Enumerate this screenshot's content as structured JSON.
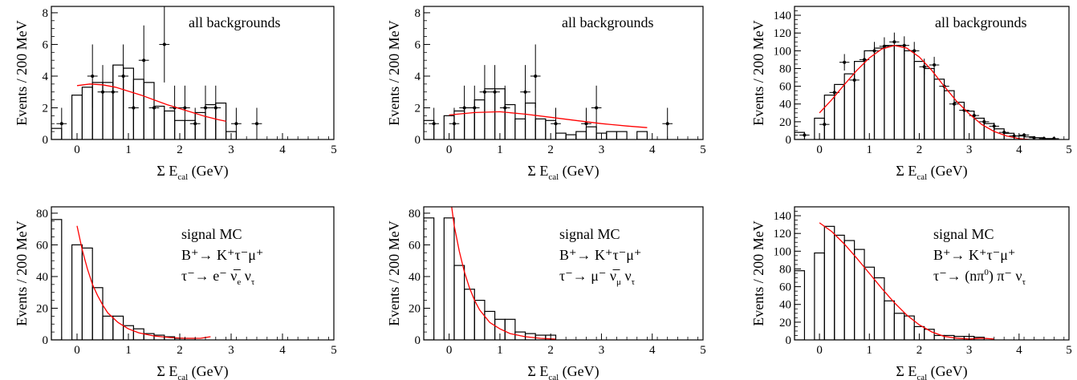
{
  "figure": {
    "colors": {
      "axes": "#000000",
      "histogram": "#000000",
      "data_points": "#000000",
      "fit": "#ff0000",
      "background": "#ffffff"
    }
  },
  "chart_data": [
    {
      "type": "histogram",
      "panel": "top-left",
      "xlabel": {
        "main": "Σ E",
        "sub": "cal",
        "unit": "(GeV)"
      },
      "ylabel": "Events / 200 MeV",
      "xlim": [
        -0.5,
        5
      ],
      "ylim": [
        0,
        8.4
      ],
      "xticks": [
        "0",
        "1",
        "2",
        "3",
        "4",
        "5"
      ],
      "yticks": [
        "0",
        "2",
        "4",
        "6",
        "8"
      ],
      "annotations": [
        {
          "text": "all backgrounds",
          "sub": "",
          "sup": ""
        }
      ],
      "bin_width": 0.2,
      "histogram": {
        "x": [
          -0.4,
          -0.2,
          0.0,
          0.2,
          0.4,
          0.6,
          0.8,
          1.0,
          1.2,
          1.4,
          1.6,
          1.8,
          2.0,
          2.2,
          2.4,
          2.6,
          2.8,
          3.0,
          3.2
        ],
        "values": [
          0.7,
          0,
          2.8,
          3.3,
          3.6,
          3.6,
          4.7,
          4.5,
          3.8,
          3.6,
          2.1,
          1.8,
          1.2,
          1.2,
          1.7,
          2.2,
          2.3,
          0.5,
          0
        ]
      },
      "data_points": {
        "x": [
          -0.3,
          0.3,
          0.5,
          0.7,
          0.9,
          1.1,
          1.3,
          1.5,
          1.7,
          1.9,
          2.1,
          2.3,
          2.5,
          2.7,
          3.1,
          3.5
        ],
        "y": [
          1,
          4,
          3,
          3,
          4,
          2,
          5,
          2,
          6,
          2,
          2,
          1,
          2,
          2,
          1,
          1
        ],
        "yerr": [
          1,
          2,
          1.7,
          1.7,
          2,
          1.4,
          2.2,
          1.4,
          2.4,
          1.4,
          1.4,
          1,
          1.4,
          1.4,
          1,
          1
        ]
      },
      "fit": {
        "x": [
          0,
          0.25,
          0.5,
          0.75,
          1.0,
          1.25,
          1.5,
          1.75,
          2.0,
          2.25,
          2.5,
          2.75,
          2.9
        ],
        "y": [
          3.4,
          3.5,
          3.45,
          3.3,
          3.05,
          2.8,
          2.5,
          2.2,
          1.95,
          1.7,
          1.45,
          1.25,
          1.15
        ]
      }
    },
    {
      "type": "histogram",
      "panel": "top-middle",
      "xlabel": {
        "main": "Σ E",
        "sub": "cal",
        "unit": "(GeV)"
      },
      "ylabel": "Events / 200 MeV",
      "xlim": [
        -0.5,
        5
      ],
      "ylim": [
        0,
        8.4
      ],
      "xticks": [
        "0",
        "1",
        "2",
        "3",
        "4",
        "5"
      ],
      "yticks": [
        "0",
        "2",
        "4",
        "6",
        "8"
      ],
      "annotations": [
        {
          "text": "all backgrounds",
          "sub": "",
          "sup": ""
        }
      ],
      "bin_width": 0.2,
      "histogram": {
        "x": [
          -0.4,
          -0.2,
          0.0,
          0.2,
          0.4,
          0.6,
          0.8,
          1.0,
          1.2,
          1.4,
          1.6,
          1.8,
          2.0,
          2.2,
          2.4,
          2.6,
          2.8,
          3.0,
          3.2,
          3.4,
          3.6,
          3.8,
          4.0
        ],
        "values": [
          1.2,
          0,
          1.5,
          1.8,
          2.0,
          2.5,
          3.2,
          3.2,
          2.2,
          1.3,
          2.3,
          1.3,
          1.2,
          0.4,
          0.3,
          0.5,
          0.8,
          0.4,
          0.5,
          0.5,
          0,
          0.5,
          0
        ]
      },
      "data_points": {
        "x": [
          -0.3,
          0.1,
          0.3,
          0.5,
          0.7,
          0.9,
          1.1,
          1.5,
          1.7,
          2.1,
          2.7,
          2.9,
          4.3
        ],
        "y": [
          1,
          1,
          2,
          2,
          3,
          3,
          2,
          3,
          4,
          1,
          1,
          2,
          1
        ],
        "yerr": [
          1,
          1,
          1.4,
          1.4,
          1.7,
          1.7,
          1.4,
          1.7,
          2,
          1,
          1,
          1.4,
          1
        ]
      },
      "fit": {
        "x": [
          0,
          0.5,
          1.0,
          1.5,
          2.0,
          2.5,
          3.0,
          3.5,
          3.9
        ],
        "y": [
          1.55,
          1.7,
          1.75,
          1.6,
          1.4,
          1.2,
          1.0,
          0.85,
          0.75
        ]
      }
    },
    {
      "type": "histogram",
      "panel": "top-right",
      "xlabel": {
        "main": "Σ E",
        "sub": "cal",
        "unit": "(GeV)"
      },
      "ylabel": "Events / 200 MeV",
      "xlim": [
        -0.5,
        5
      ],
      "ylim": [
        0,
        150
      ],
      "xticks": [
        "0",
        "1",
        "2",
        "3",
        "4",
        "5"
      ],
      "yticks": [
        "0",
        "20",
        "40",
        "60",
        "80",
        "100",
        "120",
        "140"
      ],
      "annotations": [
        {
          "text": "all backgrounds",
          "sub": "",
          "sup": ""
        }
      ],
      "bin_width": 0.2,
      "histogram": {
        "x": [
          -0.4,
          -0.2,
          0.0,
          0.2,
          0.4,
          0.6,
          0.8,
          1.0,
          1.2,
          1.4,
          1.6,
          1.8,
          2.0,
          2.2,
          2.4,
          2.6,
          2.8,
          3.0,
          3.2,
          3.4,
          3.6,
          3.8,
          4.0,
          4.2,
          4.4,
          4.6,
          4.8
        ],
        "values": [
          8,
          0,
          24,
          50,
          62,
          74,
          88,
          100,
          103,
          106,
          106,
          100,
          88,
          80,
          68,
          55,
          42,
          32,
          24,
          18,
          12,
          7,
          4,
          3,
          2,
          1,
          0
        ]
      },
      "data_points": {
        "x": [
          -0.3,
          0.1,
          0.3,
          0.5,
          0.7,
          0.9,
          1.1,
          1.3,
          1.5,
          1.7,
          1.9,
          2.1,
          2.3,
          2.5,
          2.7,
          2.9,
          3.1,
          3.3,
          3.5,
          3.7,
          3.9,
          4.1,
          4.3,
          4.5,
          4.7
        ],
        "y": [
          5,
          17,
          53,
          87,
          67,
          90,
          100,
          105,
          110,
          106,
          100,
          82,
          84,
          60,
          40,
          33,
          27,
          20,
          15,
          8,
          4,
          5,
          2,
          1,
          1
        ],
        "yerr": [
          2.2,
          4.1,
          7.3,
          9.3,
          8.2,
          9.5,
          10,
          10.2,
          10.5,
          10.3,
          10,
          9.1,
          9.2,
          7.7,
          6.3,
          5.7,
          5.2,
          4.5,
          3.9,
          2.8,
          2,
          2.2,
          1.4,
          1,
          1
        ]
      },
      "fit": {
        "x": [
          0,
          0.25,
          0.5,
          0.75,
          1.0,
          1.25,
          1.5,
          1.75,
          2.0,
          2.25,
          2.5,
          2.75,
          3.0,
          3.25,
          3.5,
          3.75,
          4.0,
          4.2
        ],
        "y": [
          30,
          45,
          62,
          78,
          92,
          102,
          106,
          103,
          93,
          78,
          60,
          43,
          29,
          17,
          9,
          4,
          1,
          0
        ]
      }
    },
    {
      "type": "histogram",
      "panel": "bottom-left",
      "xlabel": {
        "main": "Σ E",
        "sub": "cal",
        "unit": "(GeV)"
      },
      "ylabel": "Events / 200 MeV",
      "xlim": [
        -0.5,
        5
      ],
      "ylim": [
        0,
        84
      ],
      "xticks": [
        "0",
        "1",
        "2",
        "3",
        "4",
        "5"
      ],
      "yticks": [
        "0",
        "20",
        "40",
        "60",
        "80"
      ],
      "annotations": [
        {
          "text": "signal MC",
          "sub": "",
          "sup": ""
        },
        {
          "text": "B⁺→ K⁺τ⁻μ⁺",
          "sub": "",
          "sup": ""
        },
        {
          "text": "τ⁻→ e⁻ ν̅",
          "sub": "e",
          "sup": "",
          "tail": " ν",
          "tail_sub": "τ"
        }
      ],
      "bin_width": 0.2,
      "histogram": {
        "x": [
          -0.4,
          -0.2,
          0.0,
          0.2,
          0.4,
          0.6,
          0.8,
          1.0,
          1.2,
          1.4,
          1.6,
          1.8,
          2.0,
          2.2,
          2.4
        ],
        "values": [
          76,
          0,
          60,
          58,
          33,
          15,
          15,
          9,
          7,
          4,
          3,
          2,
          1,
          1,
          0
        ]
      },
      "fit": {
        "x": [
          0,
          0.1,
          0.2,
          0.3,
          0.4,
          0.5,
          0.6,
          0.8,
          1.0,
          1.2,
          1.5,
          1.8,
          2.1,
          2.4,
          2.6
        ],
        "y": [
          72,
          57,
          45,
          35,
          28,
          22,
          17,
          11,
          7,
          4.5,
          2.5,
          1.5,
          1,
          1,
          2
        ]
      }
    },
    {
      "type": "histogram",
      "panel": "bottom-middle",
      "xlabel": {
        "main": "Σ E",
        "sub": "cal",
        "unit": "(GeV)"
      },
      "ylabel": "Events / 200 MeV",
      "xlim": [
        -0.5,
        5
      ],
      "ylim": [
        0,
        84
      ],
      "xticks": [
        "0",
        "1",
        "2",
        "3",
        "4",
        "5"
      ],
      "yticks": [
        "0",
        "20",
        "40",
        "60",
        "80"
      ],
      "annotations": [
        {
          "text": "signal MC",
          "sub": "",
          "sup": ""
        },
        {
          "text": "B⁺→ K⁺τ⁻μ⁺",
          "sub": "",
          "sup": ""
        },
        {
          "text": "τ⁻→ μ⁻ ν̅",
          "sub": "μ",
          "sup": "",
          "tail": " ν",
          "tail_sub": "τ"
        }
      ],
      "bin_width": 0.2,
      "histogram": {
        "x": [
          -0.4,
          -0.2,
          0.0,
          0.2,
          0.4,
          0.6,
          0.8,
          1.0,
          1.2,
          1.4,
          1.6,
          1.8,
          2.0,
          2.2
        ],
        "values": [
          77,
          0,
          77,
          47,
          32,
          25,
          18,
          13,
          13,
          5,
          4,
          3,
          3,
          0
        ]
      },
      "fit": {
        "x": [
          0.05,
          0.1,
          0.2,
          0.3,
          0.4,
          0.5,
          0.6,
          0.8,
          1.0,
          1.2,
          1.5,
          1.8,
          2.1
        ],
        "y": [
          84,
          72,
          56,
          43,
          33,
          25,
          19,
          11,
          7,
          4,
          2,
          1,
          0.5
        ]
      }
    },
    {
      "type": "histogram",
      "panel": "bottom-right",
      "xlabel": {
        "main": "Σ E",
        "sub": "cal",
        "unit": "(GeV)"
      },
      "ylabel": "Events / 200 MeV",
      "xlim": [
        -0.5,
        5
      ],
      "ylim": [
        0,
        150
      ],
      "xticks": [
        "0",
        "1",
        "2",
        "3",
        "4",
        "5"
      ],
      "yticks": [
        "0",
        "20",
        "40",
        "60",
        "80",
        "100",
        "120",
        "140"
      ],
      "annotations": [
        {
          "text": "signal MC",
          "sub": "",
          "sup": ""
        },
        {
          "text": "B⁺→ K⁺τ⁻μ⁺",
          "sub": "",
          "sup": ""
        },
        {
          "text": "τ⁻→ (nπ",
          "sub": "",
          "sup": "0",
          "tail": ") π⁻ ν",
          "tail_sub": "τ"
        }
      ],
      "bin_width": 0.2,
      "histogram": {
        "x": [
          -0.4,
          -0.2,
          0.0,
          0.2,
          0.4,
          0.6,
          0.8,
          1.0,
          1.2,
          1.4,
          1.6,
          1.8,
          2.0,
          2.2,
          2.4,
          2.6,
          2.8,
          3.0,
          3.2,
          3.4
        ],
        "values": [
          78,
          0,
          98,
          128,
          118,
          112,
          102,
          82,
          70,
          44,
          30,
          27,
          15,
          12,
          5,
          5,
          4,
          4,
          3,
          0
        ]
      },
      "fit": {
        "x": [
          0,
          0.25,
          0.5,
          0.75,
          1.0,
          1.25,
          1.5,
          1.75,
          2.0,
          2.25,
          2.5,
          2.75,
          3.0,
          3.25,
          3.5
        ],
        "y": [
          132,
          122,
          108,
          92,
          75,
          58,
          42,
          28,
          17,
          9,
          4,
          2,
          1,
          2,
          1
        ]
      }
    }
  ]
}
